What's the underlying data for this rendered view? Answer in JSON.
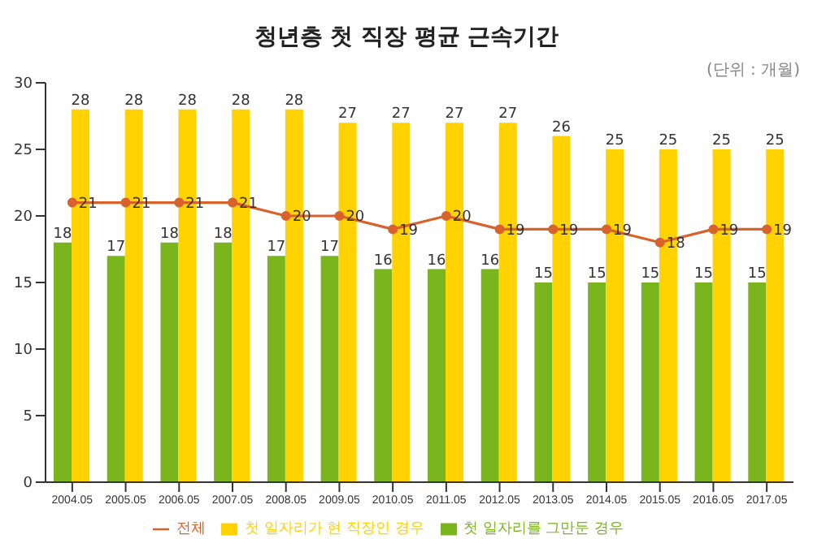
{
  "chart_data": {
    "type": "bar",
    "title": "청년층 첫 직장 평균 근속기간",
    "annotations": [
      "(단위 : 개월)"
    ],
    "categories": [
      "2004.05",
      "2005.05",
      "2006.05",
      "2007.05",
      "2008.05",
      "2009.05",
      "2010.05",
      "2011.05",
      "2012.05",
      "2013.05",
      "2014.05",
      "2015.05",
      "2016.05",
      "2017.05"
    ],
    "series": [
      {
        "name": "첫 일자리를 그만둔 경우",
        "color": "#7ab51d",
        "values": [
          18,
          17,
          18,
          18,
          17,
          17,
          16,
          16,
          16,
          15,
          15,
          15,
          15,
          15
        ]
      },
      {
        "name": "첫 일자리가 현 직장인 경우",
        "color": "#ffd200",
        "values": [
          28,
          28,
          28,
          28,
          28,
          27,
          27,
          27,
          27,
          26,
          25,
          25,
          25,
          25
        ]
      },
      {
        "name": "전체",
        "type": "line",
        "color": "#d9622b",
        "values": [
          21,
          21,
          21,
          21,
          20,
          20,
          19,
          20,
          19,
          19,
          19,
          18,
          19,
          19
        ]
      }
    ],
    "ylim": [
      0,
      30
    ],
    "yticks": [
      0,
      5,
      10,
      15,
      20,
      25,
      30
    ],
    "grid": false,
    "legend": "bottom",
    "marker": "circle",
    "data_labels": true
  }
}
